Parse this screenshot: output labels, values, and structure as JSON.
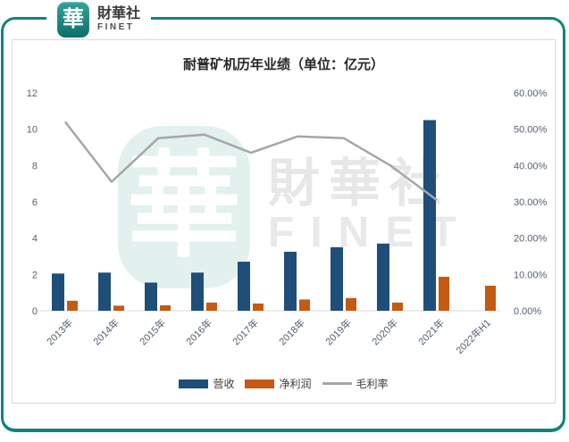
{
  "header": {
    "logo_glyph": "華",
    "brand_cn": "財華社",
    "brand_en": "FINET"
  },
  "watermark": {
    "badge_glyph": "華",
    "text_cn": "財華社",
    "text_en": "FINET"
  },
  "chart_data": {
    "type": "bar",
    "subtype": "combo-bar-line-dual-axis",
    "title": "耐普矿机历年业绩（单位：亿元）",
    "categories": [
      "2013年",
      "2014年",
      "2015年",
      "2016年",
      "2017年",
      "2018年",
      "2019年",
      "2020年",
      "2021年",
      "2022年H1"
    ],
    "series": [
      {
        "name": "营收",
        "type": "bar",
        "axis": "left",
        "color": "#1F4E79",
        "values": [
          2.05,
          2.1,
          1.55,
          2.1,
          2.7,
          3.25,
          3.5,
          3.7,
          10.5,
          null
        ]
      },
      {
        "name": "净利润",
        "type": "bar",
        "axis": "left",
        "color": "#C55A11",
        "values": [
          0.55,
          0.28,
          0.3,
          0.45,
          0.4,
          0.62,
          0.7,
          0.45,
          1.87,
          1.38
        ]
      },
      {
        "name": "毛利率",
        "type": "line",
        "axis": "right",
        "color": "#A6A6A6",
        "values": [
          52,
          35.5,
          47.5,
          48.5,
          43.5,
          48,
          47.5,
          40,
          30.5,
          null
        ]
      }
    ],
    "left_axis": {
      "min": 0,
      "max": 12,
      "step": 2,
      "tick_labels": [
        "0",
        "2",
        "4",
        "6",
        "8",
        "10",
        "12"
      ]
    },
    "right_axis": {
      "min": 0,
      "max": 60,
      "step": 10,
      "tick_labels": [
        "0.00%",
        "10.00%",
        "20.00%",
        "30.00%",
        "40.00%",
        "50.00%",
        "60.00%"
      ]
    },
    "legend": {
      "position": "bottom",
      "items": [
        "营收",
        "净利润",
        "毛利率"
      ]
    },
    "grid": false,
    "x_label_rotation_deg": -45
  },
  "colors": {
    "accent_teal": "#12837C",
    "bar_revenue": "#1F4E79",
    "bar_net_profit": "#C55A11",
    "line_gross_margin": "#A6A6A6",
    "axis_text": "#546170",
    "title_text": "#262626",
    "panel_border": "#D9D9D9"
  }
}
